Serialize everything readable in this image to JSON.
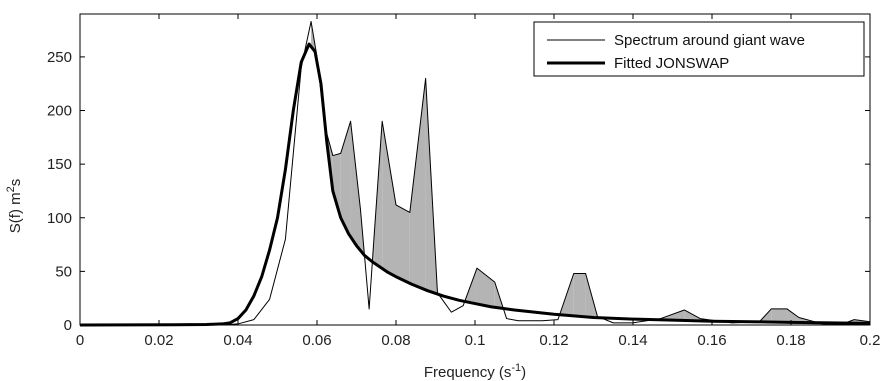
{
  "chart_data": {
    "type": "line",
    "xlabel": {
      "base": "Frequency (s",
      "sup": "-1",
      "tail": ")"
    },
    "ylabel": {
      "base": "S(f) m",
      "sup": "2",
      "tail": "s"
    },
    "xlim": [
      0,
      0.2
    ],
    "ylim": [
      0,
      290
    ],
    "xticks": [
      0,
      0.02,
      0.04,
      0.06,
      0.08,
      0.1,
      0.12,
      0.14,
      0.16,
      0.18,
      0.2
    ],
    "xtick_labels": [
      "0",
      "0.02",
      "0.04",
      "0.06",
      "0.08",
      "0.1",
      "0.12",
      "0.14",
      "0.16",
      "0.18",
      "0.2"
    ],
    "yticks": [
      0,
      50,
      100,
      150,
      200,
      250
    ],
    "ytick_labels": [
      "0",
      "50",
      "100",
      "150",
      "200",
      "250"
    ],
    "grid": false,
    "legend_position": "top-right",
    "shading": "area between the two series where the measured spectrum exceeds the fitted spectrum is filled gray",
    "colors": {
      "fill": "#b4b4b4",
      "line": "#000000",
      "axis": "#000000"
    },
    "series": [
      {
        "name": "Spectrum around giant wave",
        "style": "thin",
        "x": [
          0,
          0.024,
          0.036,
          0.04,
          0.044,
          0.048,
          0.052,
          0.056,
          0.0585,
          0.06,
          0.062,
          0.064,
          0.066,
          0.0685,
          0.071,
          0.0732,
          0.0745,
          0.0765,
          0.08,
          0.0835,
          0.0875,
          0.0905,
          0.094,
          0.097,
          0.1005,
          0.105,
          0.108,
          0.111,
          0.117,
          0.121,
          0.125,
          0.128,
          0.131,
          0.135,
          0.14,
          0.147,
          0.153,
          0.157,
          0.165,
          0.172,
          0.175,
          0.179,
          0.182,
          0.188,
          0.193,
          0.196,
          0.2
        ],
        "y": [
          0,
          0,
          0,
          1,
          5,
          24,
          80,
          240,
          283,
          250,
          185,
          158,
          160,
          190,
          108,
          15,
          85,
          190,
          112,
          105,
          230,
          30,
          12,
          18,
          53,
          40,
          6,
          4,
          4,
          5,
          48,
          48,
          8,
          2,
          2,
          6,
          14,
          6,
          2,
          3,
          15,
          15,
          7,
          1,
          1,
          5,
          3
        ]
      },
      {
        "name": "Fitted JONSWAP",
        "style": "thick",
        "x": [
          0,
          0.024,
          0.032,
          0.036,
          0.038,
          0.04,
          0.042,
          0.044,
          0.046,
          0.048,
          0.05,
          0.052,
          0.054,
          0.056,
          0.058,
          0.0595,
          0.061,
          0.0625,
          0.064,
          0.066,
          0.068,
          0.07,
          0.072,
          0.074,
          0.076,
          0.078,
          0.08,
          0.084,
          0.088,
          0.092,
          0.096,
          0.1,
          0.104,
          0.11,
          0.12,
          0.13,
          0.14,
          0.15,
          0.16,
          0.17,
          0.18,
          0.19,
          0.2
        ],
        "y": [
          0,
          0.2,
          0.5,
          1,
          2,
          6,
          14,
          27,
          45,
          70,
          100,
          145,
          200,
          245,
          262,
          255,
          225,
          170,
          125,
          100,
          85,
          74,
          65,
          59,
          54,
          49,
          45,
          38,
          32,
          27,
          23,
          20,
          17,
          14,
          10,
          7,
          5.5,
          4.5,
          3.5,
          3,
          2.5,
          2,
          1.5
        ]
      }
    ]
  }
}
